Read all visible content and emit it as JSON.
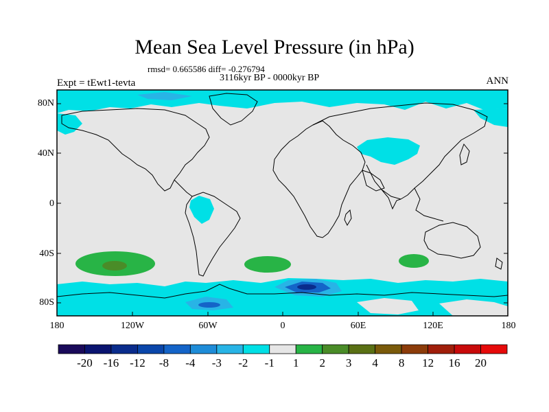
{
  "title": "Mean Sea Level Pressure (in hPa)",
  "stats_line": "rmsd= 0.665586 diff= -0.276794",
  "period_line": "3116kyr BP - 0000kyr BP",
  "experiment_label": "Expt = tEwt1-tevta",
  "season_label": "ANN",
  "lat_labels": [
    "80N",
    "40N",
    "0",
    "40S",
    "80S"
  ],
  "lon_labels": [
    "180",
    "120W",
    "60W",
    "0",
    "60E",
    "120E",
    "180"
  ],
  "colorbar": {
    "labels": [
      "-20",
      "-16",
      "-12",
      "-8",
      "-4",
      "-3",
      "-2",
      "-1",
      "1",
      "2",
      "3",
      "4",
      "8",
      "12",
      "16",
      "20"
    ],
    "colors": [
      "#1a0a5a",
      "#0a1470",
      "#0a2c8c",
      "#0a46aa",
      "#1464c8",
      "#1e8cd8",
      "#28b4e6",
      "#00e0e6",
      "#e6e6e6",
      "#28b446",
      "#4a8c28",
      "#5a7014",
      "#7a5a0a",
      "#8c3c0a",
      "#a01e0a",
      "#c80a0a",
      "#e60a0a"
    ]
  },
  "colors": {
    "neutral": "#e6e6e6",
    "light_negative": "#00e0e6",
    "medium_negative": "#28b4e6",
    "strong_negative": "#1464c8",
    "deep_negative": "#0a2c8c",
    "light_positive": "#28b446",
    "medium_positive": "#4a8c28"
  }
}
